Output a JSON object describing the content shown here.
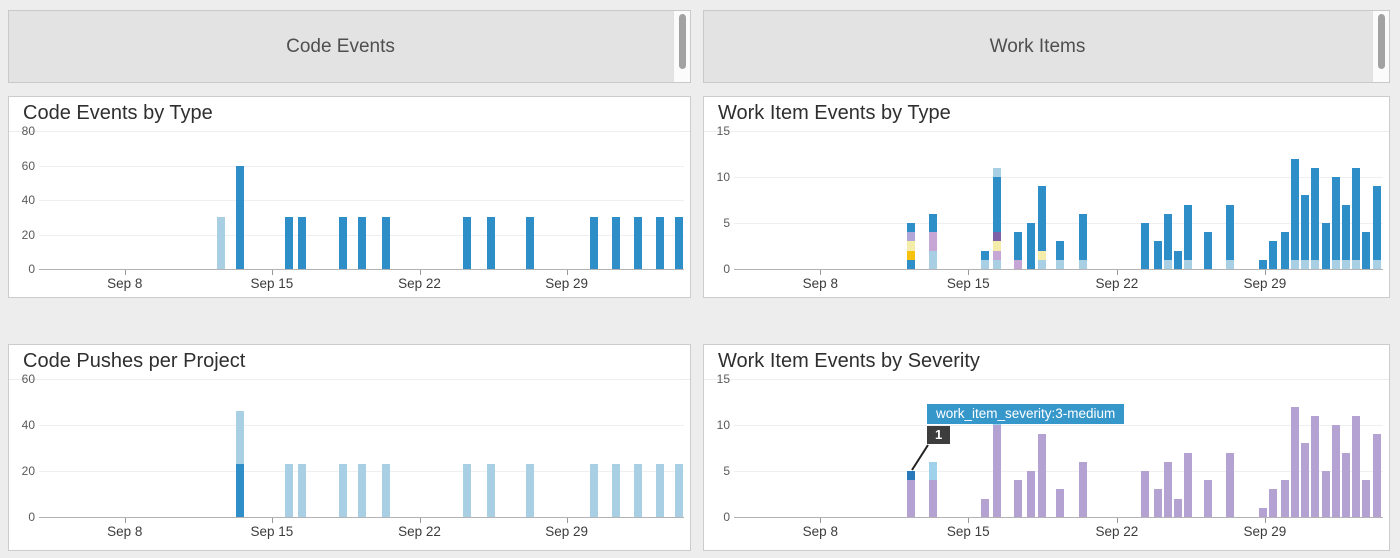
{
  "headers": {
    "left_title": "Code Events",
    "right_title": "Work Items"
  },
  "palette": {
    "blue": "#2e8ec8",
    "light_blue": "#a9cfe5",
    "gold": "#f6c20e",
    "pale_yellow": "#f4edaa",
    "lavender": "#b0a6d8",
    "pink_lavender": "#c6a6d4",
    "dark_purple": "#7e60a8",
    "purple": "#b4a2d3",
    "light_cyan": "#9fd2ea",
    "highlight_blue": "#2a79ba"
  },
  "chart_data": [
    {
      "type": "bar",
      "title": "Code Events by Type",
      "ylim": [
        0,
        80
      ],
      "y_ticks": [
        0,
        20,
        40,
        60,
        80
      ],
      "grid": true,
      "x_ticks": [
        {
          "label": "Sep 8",
          "pct": 13.3
        },
        {
          "label": "Sep 15",
          "pct": 36.1
        },
        {
          "label": "Sep 22",
          "pct": 59.0
        },
        {
          "label": "Sep 29",
          "pct": 81.8
        }
      ],
      "bars": [
        {
          "x": 28.2,
          "date": "Sep 12",
          "segments": [
            [
              "light_blue",
              30
            ]
          ]
        },
        {
          "x": 31.1,
          "date": "Sep 13",
          "segments": [
            [
              "blue",
              60
            ]
          ]
        },
        {
          "x": 38.8,
          "date": "Sep 15",
          "segments": [
            [
              "blue",
              30
            ]
          ]
        },
        {
          "x": 40.7,
          "date": "Sep 16",
          "segments": [
            [
              "blue",
              30
            ]
          ]
        },
        {
          "x": 47.1,
          "date": "Sep 18",
          "segments": [
            [
              "blue",
              30
            ]
          ]
        },
        {
          "x": 50.1,
          "date": "Sep 19",
          "segments": [
            [
              "blue",
              30
            ]
          ]
        },
        {
          "x": 53.8,
          "date": "Sep 20",
          "segments": [
            [
              "blue",
              30
            ]
          ]
        },
        {
          "x": 66.4,
          "date": "Sep 24",
          "segments": [
            [
              "blue",
              30
            ]
          ]
        },
        {
          "x": 70.0,
          "date": "Sep 25",
          "segments": [
            [
              "blue",
              30
            ]
          ]
        },
        {
          "x": 76.1,
          "date": "Sep 27",
          "segments": [
            [
              "blue",
              30
            ]
          ]
        },
        {
          "x": 86.1,
          "date": "Sep 30",
          "segments": [
            [
              "blue",
              30
            ]
          ]
        },
        {
          "x": 89.5,
          "date": "Oct 1",
          "segments": [
            [
              "blue",
              30
            ]
          ]
        },
        {
          "x": 92.9,
          "date": "Oct 2",
          "segments": [
            [
              "blue",
              30
            ]
          ]
        },
        {
          "x": 96.3,
          "date": "Oct 3",
          "segments": [
            [
              "blue",
              30
            ]
          ]
        },
        {
          "x": 99.2,
          "date": "Oct 4",
          "segments": [
            [
              "blue",
              30
            ]
          ]
        }
      ]
    },
    {
      "type": "bar",
      "title": "Work Item Events by Type",
      "ylim": [
        0,
        15
      ],
      "y_ticks": [
        0,
        5,
        10,
        15
      ],
      "grid": true,
      "x_ticks": [
        {
          "label": "Sep 8",
          "pct": 13.3
        },
        {
          "label": "Sep 15",
          "pct": 36.1
        },
        {
          "label": "Sep 22",
          "pct": 59.0
        },
        {
          "label": "Sep 29",
          "pct": 81.8
        }
      ],
      "bars": [
        {
          "x": 27.3,
          "date": "Sep 12",
          "segments": [
            [
              "blue",
              1
            ],
            [
              "gold",
              1
            ],
            [
              "pale_yellow",
              1
            ],
            [
              "lavender",
              1
            ],
            [
              "blue",
              1
            ]
          ]
        },
        {
          "x": 30.7,
          "date": "Sep 13",
          "segments": [
            [
              "light_blue",
              2
            ],
            [
              "pink_lavender",
              2
            ],
            [
              "blue",
              2
            ]
          ]
        },
        {
          "x": 38.7,
          "date": "Sep 15",
          "segments": [
            [
              "light_blue",
              1
            ],
            [
              "blue",
              1
            ]
          ]
        },
        {
          "x": 40.6,
          "date": "Sep 16",
          "segments": [
            [
              "light_blue",
              1
            ],
            [
              "pink_lavender",
              1
            ],
            [
              "pale_yellow",
              1
            ],
            [
              "dark_purple",
              1
            ],
            [
              "blue",
              6
            ],
            [
              "light_blue",
              1
            ]
          ]
        },
        {
          "x": 43.8,
          "date": "Sep 17",
          "segments": [
            [
              "pink_lavender",
              1
            ],
            [
              "blue",
              3
            ]
          ]
        },
        {
          "x": 45.7,
          "date": "Sep 17",
          "segments": [
            [
              "blue",
              5
            ]
          ]
        },
        {
          "x": 47.4,
          "date": "Sep 18",
          "segments": [
            [
              "light_blue",
              1
            ],
            [
              "pale_yellow",
              1
            ],
            [
              "blue",
              7
            ]
          ]
        },
        {
          "x": 50.3,
          "date": "Sep 19",
          "segments": [
            [
              "light_blue",
              1
            ],
            [
              "blue",
              2
            ]
          ]
        },
        {
          "x": 53.7,
          "date": "Sep 20",
          "segments": [
            [
              "light_blue",
              1
            ],
            [
              "blue",
              5
            ]
          ]
        },
        {
          "x": 63.4,
          "date": "Sep 23",
          "segments": [
            [
              "blue",
              5
            ]
          ]
        },
        {
          "x": 65.3,
          "date": "Sep 23",
          "segments": [
            [
              "blue",
              3
            ]
          ]
        },
        {
          "x": 66.8,
          "date": "Sep 24",
          "segments": [
            [
              "light_blue",
              1
            ],
            [
              "blue",
              5
            ]
          ]
        },
        {
          "x": 68.4,
          "date": "Sep 24",
          "segments": [
            [
              "blue",
              2
            ]
          ]
        },
        {
          "x": 69.9,
          "date": "Sep 25",
          "segments": [
            [
              "light_blue",
              1
            ],
            [
              "blue",
              6
            ]
          ]
        },
        {
          "x": 73.0,
          "date": "Sep 26",
          "segments": [
            [
              "blue",
              4
            ]
          ]
        },
        {
          "x": 76.4,
          "date": "Sep 27",
          "segments": [
            [
              "light_blue",
              1
            ],
            [
              "blue",
              6
            ]
          ]
        },
        {
          "x": 81.5,
          "date": "Sep 28",
          "segments": [
            [
              "blue",
              1
            ]
          ]
        },
        {
          "x": 83.0,
          "date": "Sep 29",
          "segments": [
            [
              "blue",
              3
            ]
          ]
        },
        {
          "x": 84.9,
          "date": "Sep 29",
          "segments": [
            [
              "blue",
              4
            ]
          ]
        },
        {
          "x": 86.4,
          "date": "Sep 30",
          "segments": [
            [
              "light_blue",
              1
            ],
            [
              "blue",
              11
            ]
          ]
        },
        {
          "x": 88.0,
          "date": "Sep 30",
          "segments": [
            [
              "light_blue",
              1
            ],
            [
              "blue",
              7
            ]
          ]
        },
        {
          "x": 89.5,
          "date": "Oct 1",
          "segments": [
            [
              "light_blue",
              1
            ],
            [
              "blue",
              10
            ]
          ]
        },
        {
          "x": 91.2,
          "date": "Oct 1",
          "segments": [
            [
              "blue",
              5
            ]
          ]
        },
        {
          "x": 92.7,
          "date": "Oct 2",
          "segments": [
            [
              "light_blue",
              1
            ],
            [
              "blue",
              9
            ]
          ]
        },
        {
          "x": 94.3,
          "date": "Oct 2",
          "segments": [
            [
              "light_blue",
              1
            ],
            [
              "blue",
              6
            ]
          ]
        },
        {
          "x": 95.8,
          "date": "Oct 3",
          "segments": [
            [
              "light_blue",
              1
            ],
            [
              "blue",
              10
            ]
          ]
        },
        {
          "x": 97.4,
          "date": "Oct 3",
          "segments": [
            [
              "blue",
              4
            ]
          ]
        },
        {
          "x": 99.1,
          "date": "Oct 4",
          "segments": [
            [
              "light_blue",
              1
            ],
            [
              "blue",
              8
            ]
          ]
        }
      ]
    },
    {
      "type": "bar",
      "title": "Code Pushes per Project",
      "ylim": [
        0,
        60
      ],
      "y_ticks": [
        0,
        20,
        40,
        60
      ],
      "grid": true,
      "x_ticks": [
        {
          "label": "Sep 8",
          "pct": 13.3
        },
        {
          "label": "Sep 15",
          "pct": 36.1
        },
        {
          "label": "Sep 22",
          "pct": 59.0
        },
        {
          "label": "Sep 29",
          "pct": 81.8
        }
      ],
      "bars": [
        {
          "x": 31.1,
          "date": "Sep 13",
          "segments": [
            [
              "blue",
              23
            ],
            [
              "light_blue",
              23
            ]
          ]
        },
        {
          "x": 38.8,
          "date": "Sep 15",
          "segments": [
            [
              "light_blue",
              23
            ]
          ]
        },
        {
          "x": 40.7,
          "date": "Sep 16",
          "segments": [
            [
              "light_blue",
              23
            ]
          ]
        },
        {
          "x": 47.1,
          "date": "Sep 18",
          "segments": [
            [
              "light_blue",
              23
            ]
          ]
        },
        {
          "x": 50.1,
          "date": "Sep 19",
          "segments": [
            [
              "light_blue",
              23
            ]
          ]
        },
        {
          "x": 53.8,
          "date": "Sep 20",
          "segments": [
            [
              "light_blue",
              23
            ]
          ]
        },
        {
          "x": 66.4,
          "date": "Sep 24",
          "segments": [
            [
              "light_blue",
              23
            ]
          ]
        },
        {
          "x": 70.0,
          "date": "Sep 25",
          "segments": [
            [
              "light_blue",
              23
            ]
          ]
        },
        {
          "x": 76.1,
          "date": "Sep 27",
          "segments": [
            [
              "light_blue",
              23
            ]
          ]
        },
        {
          "x": 86.1,
          "date": "Sep 30",
          "segments": [
            [
              "light_blue",
              23
            ]
          ]
        },
        {
          "x": 89.5,
          "date": "Oct 1",
          "segments": [
            [
              "light_blue",
              23
            ]
          ]
        },
        {
          "x": 92.9,
          "date": "Oct 2",
          "segments": [
            [
              "light_blue",
              23
            ]
          ]
        },
        {
          "x": 96.3,
          "date": "Oct 3",
          "segments": [
            [
              "light_blue",
              23
            ]
          ]
        },
        {
          "x": 99.2,
          "date": "Oct 4",
          "segments": [
            [
              "light_blue",
              23
            ]
          ]
        }
      ]
    },
    {
      "type": "bar",
      "title": "Work Item Events by Severity",
      "ylim": [
        0,
        15
      ],
      "y_ticks": [
        0,
        5,
        10,
        15
      ],
      "grid": true,
      "x_ticks": [
        {
          "label": "Sep 8",
          "pct": 13.3
        },
        {
          "label": "Sep 15",
          "pct": 36.1
        },
        {
          "label": "Sep 22",
          "pct": 59.0
        },
        {
          "label": "Sep 29",
          "pct": 81.8
        }
      ],
      "tooltip": {
        "label": "work_item_severity:3-medium",
        "value": "1"
      },
      "bars": [
        {
          "x": 27.3,
          "date": "Sep 12",
          "segments": [
            [
              "purple",
              4
            ],
            [
              "highlight_blue",
              1
            ]
          ]
        },
        {
          "x": 30.7,
          "date": "Sep 13",
          "segments": [
            [
              "purple",
              4
            ],
            [
              "light_cyan",
              2
            ]
          ]
        },
        {
          "x": 38.7,
          "date": "Sep 15",
          "segments": [
            [
              "purple",
              2
            ]
          ]
        },
        {
          "x": 40.6,
          "date": "Sep 16",
          "segments": [
            [
              "purple",
              10
            ],
            [
              "light_cyan",
              1
            ]
          ]
        },
        {
          "x": 43.8,
          "date": "Sep 17",
          "segments": [
            [
              "purple",
              4
            ]
          ]
        },
        {
          "x": 45.7,
          "date": "Sep 17",
          "segments": [
            [
              "purple",
              5
            ]
          ]
        },
        {
          "x": 47.4,
          "date": "Sep 18",
          "segments": [
            [
              "purple",
              9
            ]
          ]
        },
        {
          "x": 50.3,
          "date": "Sep 19",
          "segments": [
            [
              "purple",
              3
            ]
          ]
        },
        {
          "x": 53.7,
          "date": "Sep 20",
          "segments": [
            [
              "purple",
              6
            ]
          ]
        },
        {
          "x": 63.4,
          "date": "Sep 23",
          "segments": [
            [
              "purple",
              5
            ]
          ]
        },
        {
          "x": 65.3,
          "date": "Sep 23",
          "segments": [
            [
              "purple",
              3
            ]
          ]
        },
        {
          "x": 66.8,
          "date": "Sep 24",
          "segments": [
            [
              "purple",
              6
            ]
          ]
        },
        {
          "x": 68.4,
          "date": "Sep 24",
          "segments": [
            [
              "purple",
              2
            ]
          ]
        },
        {
          "x": 69.9,
          "date": "Sep 25",
          "segments": [
            [
              "purple",
              7
            ]
          ]
        },
        {
          "x": 73.0,
          "date": "Sep 26",
          "segments": [
            [
              "purple",
              4
            ]
          ]
        },
        {
          "x": 76.4,
          "date": "Sep 27",
          "segments": [
            [
              "purple",
              7
            ]
          ]
        },
        {
          "x": 81.5,
          "date": "Sep 28",
          "segments": [
            [
              "purple",
              1
            ]
          ]
        },
        {
          "x": 83.0,
          "date": "Sep 29",
          "segments": [
            [
              "purple",
              3
            ]
          ]
        },
        {
          "x": 84.9,
          "date": "Sep 29",
          "segments": [
            [
              "purple",
              4
            ]
          ]
        },
        {
          "x": 86.4,
          "date": "Sep 30",
          "segments": [
            [
              "purple",
              12
            ]
          ]
        },
        {
          "x": 88.0,
          "date": "Sep 30",
          "segments": [
            [
              "purple",
              8
            ]
          ]
        },
        {
          "x": 89.5,
          "date": "Oct 1",
          "segments": [
            [
              "purple",
              11
            ]
          ]
        },
        {
          "x": 91.2,
          "date": "Oct 1",
          "segments": [
            [
              "purple",
              5
            ]
          ]
        },
        {
          "x": 92.7,
          "date": "Oct 2",
          "segments": [
            [
              "purple",
              10
            ]
          ]
        },
        {
          "x": 94.3,
          "date": "Oct 2",
          "segments": [
            [
              "purple",
              7
            ]
          ]
        },
        {
          "x": 95.8,
          "date": "Oct 3",
          "segments": [
            [
              "purple",
              11
            ]
          ]
        },
        {
          "x": 97.4,
          "date": "Oct 3",
          "segments": [
            [
              "purple",
              4
            ]
          ]
        },
        {
          "x": 99.1,
          "date": "Oct 4",
          "segments": [
            [
              "purple",
              9
            ]
          ]
        }
      ]
    }
  ]
}
